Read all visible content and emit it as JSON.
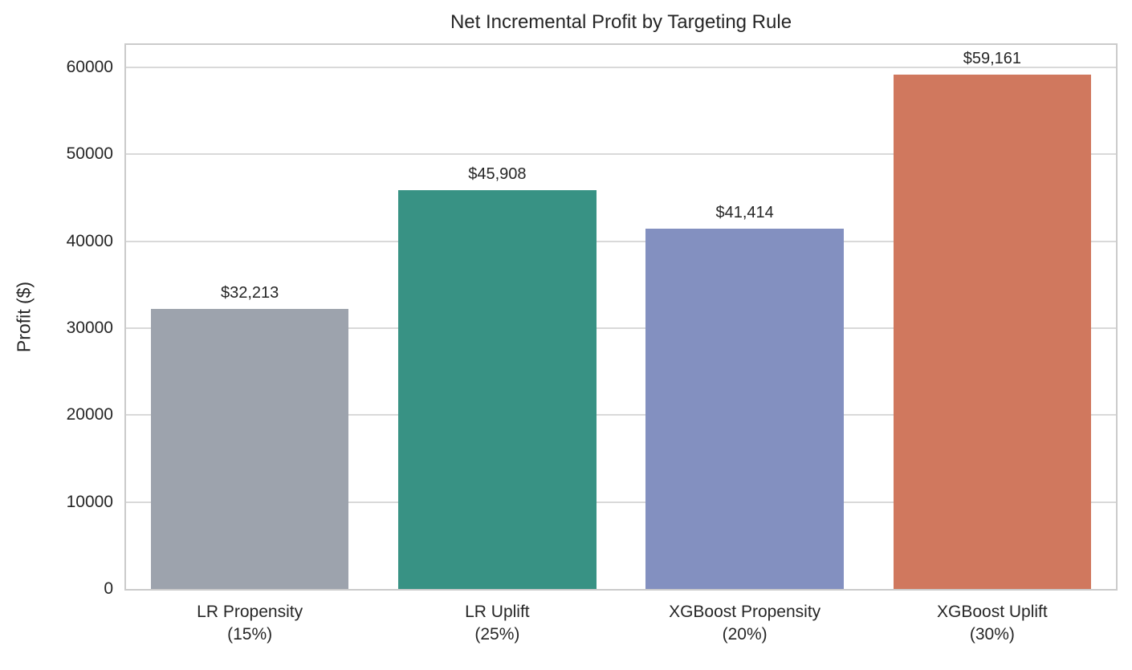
{
  "chart_data": {
    "type": "bar",
    "title": "Net Incremental Profit by Targeting Rule",
    "xlabel": "",
    "ylabel": "Profit ($)",
    "categories": [
      "LR Propensity\n(15%)",
      "LR Uplift\n(25%)",
      "XGBoost Propensity\n(20%)",
      "XGBoost Uplift\n(30%)"
    ],
    "values": [
      32213,
      45908,
      41414,
      59161
    ],
    "value_labels": [
      "$32,213",
      "$45,908",
      "$41,414",
      "$59,161"
    ],
    "bar_colors": [
      "#9da3ad",
      "#389284",
      "#8390c0",
      "#d0785e"
    ],
    "yticks": [
      0,
      10000,
      20000,
      30000,
      40000,
      50000,
      60000
    ],
    "ytick_labels": [
      "0",
      "10000",
      "20000",
      "30000",
      "40000",
      "50000",
      "60000"
    ],
    "ylim": [
      0,
      62570
    ],
    "grid": true,
    "legend": null,
    "style": {
      "grid_color": "#d9d9d9",
      "spine_color": "#cbcbcb",
      "text_color": "#262626",
      "background": "#ffffff"
    }
  }
}
